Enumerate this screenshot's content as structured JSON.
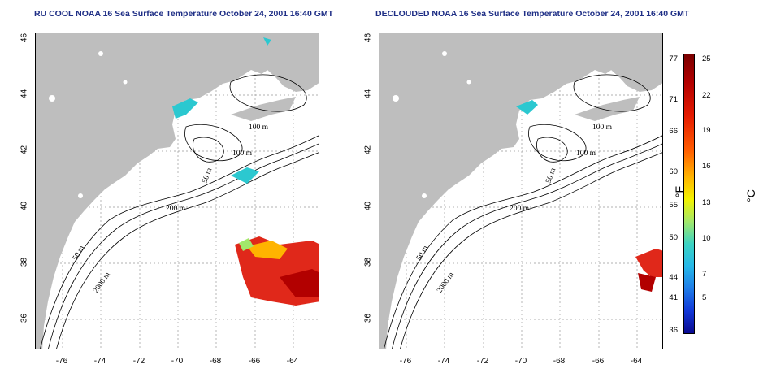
{
  "titles": {
    "left": "RU COOL NOAA 16 Sea Surface Temperature October 24, 2001 16:40 GMT",
    "right": "DECLOUDED NOAA 16 Sea Surface Temperature October 24, 2001 16:40 GMT"
  },
  "axes": {
    "y_ticks": [
      "46",
      "44",
      "42",
      "40",
      "38",
      "36"
    ],
    "x_ticks": [
      "-76",
      "-74",
      "-72",
      "-70",
      "-68",
      "-66",
      "-64"
    ]
  },
  "contour_labels": {
    "m100a": "100 m",
    "m100b": "100 m",
    "m50a": "50 m",
    "m200": "200 m",
    "m50b": "50 m",
    "m2000": "2000 m"
  },
  "colorbar": {
    "fahrenheit": [
      "77",
      "71",
      "66",
      "60",
      "55",
      "50",
      "44",
      "41",
      "36"
    ],
    "celsius": [
      "25",
      "22",
      "19",
      "16",
      "13",
      "10",
      "7",
      "5"
    ],
    "unit_f": "°F",
    "unit_c": "°C"
  },
  "colors": {
    "land": "#bebebe",
    "title": "#1f2f86",
    "warm": "#e0281a",
    "cool": "#2bc8d0"
  }
}
